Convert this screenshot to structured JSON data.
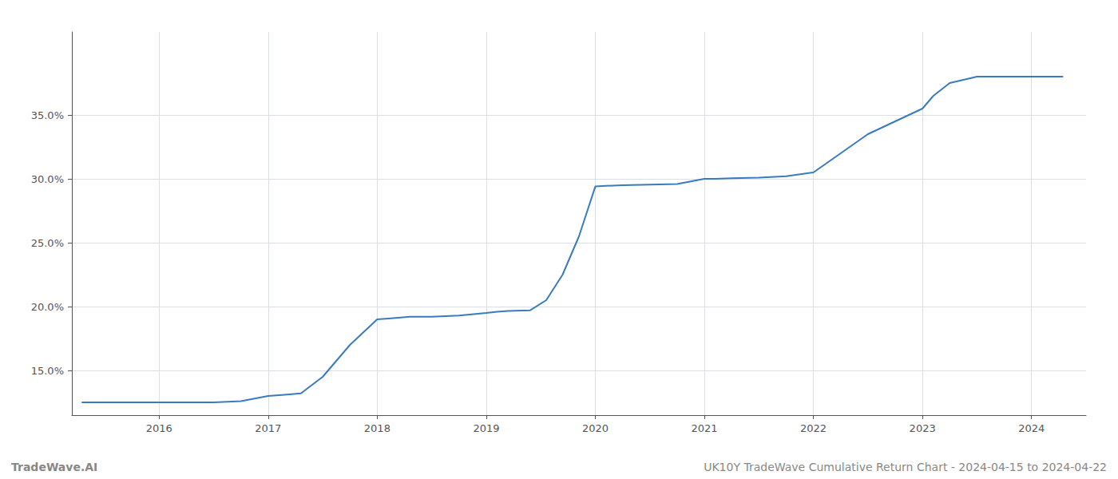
{
  "chart_data": {
    "type": "line",
    "x": [
      2015.29,
      2015.5,
      2015.75,
      2016.0,
      2016.25,
      2016.5,
      2016.75,
      2017.0,
      2017.15,
      2017.3,
      2017.5,
      2017.75,
      2018.0,
      2018.15,
      2018.3,
      2018.5,
      2018.75,
      2019.0,
      2019.1,
      2019.2,
      2019.4,
      2019.55,
      2019.7,
      2019.85,
      2020.0,
      2020.1,
      2020.25,
      2020.5,
      2020.75,
      2021.0,
      2021.1,
      2021.25,
      2021.5,
      2021.75,
      2022.0,
      2022.25,
      2022.5,
      2022.75,
      2023.0,
      2023.1,
      2023.25,
      2023.5,
      2023.75,
      2024.0,
      2024.29
    ],
    "values": [
      12.5,
      12.5,
      12.5,
      12.5,
      12.5,
      12.5,
      12.6,
      13.0,
      13.1,
      13.2,
      14.5,
      17.0,
      19.0,
      19.1,
      19.2,
      19.2,
      19.3,
      19.5,
      19.6,
      19.65,
      19.7,
      20.5,
      22.5,
      25.5,
      29.4,
      29.45,
      29.5,
      29.55,
      29.6,
      30.0,
      30.0,
      30.05,
      30.1,
      30.2,
      30.5,
      32.0,
      33.5,
      34.5,
      35.5,
      36.5,
      37.5,
      38.0,
      38.0,
      38.0,
      38.0
    ],
    "color": "#3a7abf",
    "xlim": [
      2015.2,
      2024.5
    ],
    "xticks": [
      2016,
      2017,
      2018,
      2019,
      2020,
      2021,
      2022,
      2023,
      2024
    ],
    "ylim": [
      11.5,
      41.5
    ],
    "yticks": [
      {
        "value": 15.0,
        "label": "15.0%"
      },
      {
        "value": 20.0,
        "label": "20.0%"
      },
      {
        "value": 25.0,
        "label": "25.0%"
      },
      {
        "value": 30.0,
        "label": "30.0%"
      },
      {
        "value": 35.0,
        "label": "35.0%"
      }
    ],
    "grid": true,
    "annotations": [
      "TradeWave.AI",
      "UK10Y TradeWave Cumulative Return Chart - 2024-04-15 to 2024-04-22"
    ]
  }
}
